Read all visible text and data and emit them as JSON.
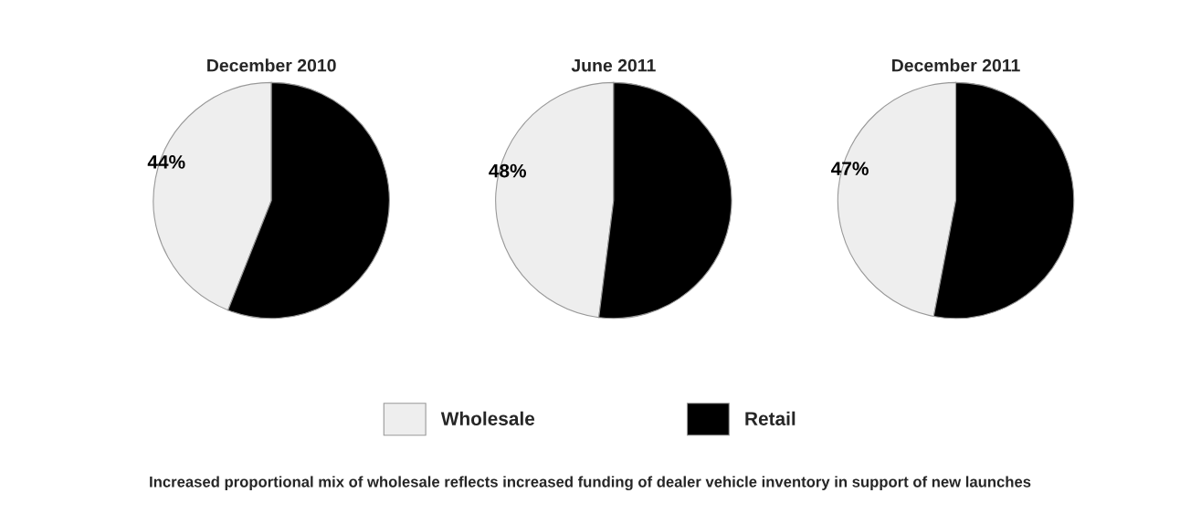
{
  "chart_data": [
    {
      "type": "pie",
      "title": "December 2010",
      "categories": [
        "Wholesale",
        "Retail"
      ],
      "values": [
        44,
        56
      ],
      "colors": [
        "#eeeeee",
        "#000000"
      ],
      "value_labels": [
        "44%",
        null
      ],
      "legend": "bottom",
      "annotations": [
        "Increased proportional mix of wholesale reflects increased funding of dealer vehicle inventory in support of new launches"
      ]
    },
    {
      "type": "pie",
      "title": "June 2011",
      "categories": [
        null,
        null
      ],
      "values": [
        48,
        52
      ],
      "colors": [
        "#eeeeee",
        "#000000"
      ],
      "value_labels": [
        "48%",
        null
      ]
    },
    {
      "type": "pie",
      "title": "December 2011",
      "categories": [
        null,
        null
      ],
      "values": [
        47,
        53
      ],
      "colors": [
        "#eeeeee",
        "#000000"
      ],
      "value_labels": [
        "47%",
        null
      ]
    }
  ]
}
